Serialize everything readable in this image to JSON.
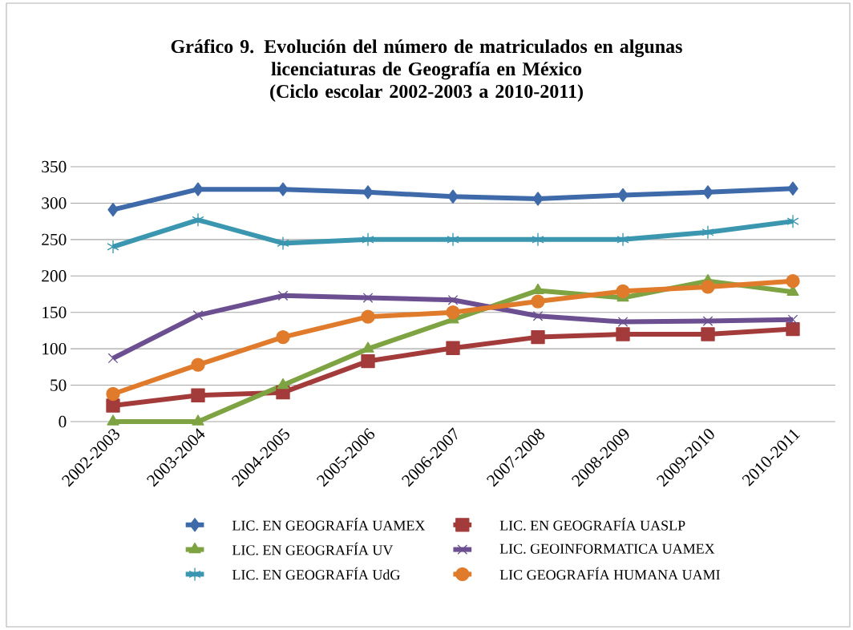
{
  "chart_data": {
    "type": "line",
    "title": "Gráfico 9. Evolución del número de matriculados en algunas\nlicenciaturas de Geografía en México\n(Ciclo escolar 2002-2003 a 2010-2011)",
    "categories": [
      "2002-2003",
      "2003-2004",
      "2004-2005",
      "2005-2006",
      "2006-2007",
      "2007-2008",
      "2008-2009",
      "2009-2010",
      "2010-2011"
    ],
    "series": [
      {
        "name": "LIC. EN GEOGRAFÍA  UAMEX",
        "color": "#3f6aaa",
        "marker": "diamond",
        "values": [
          291,
          319,
          319,
          315,
          309,
          306,
          311,
          315,
          320
        ]
      },
      {
        "name": "LIC. EN GEOGRAFÍA  UASLP",
        "color": "#a33b3a",
        "marker": "square",
        "values": [
          22,
          36,
          40,
          83,
          101,
          116,
          120,
          120,
          127
        ]
      },
      {
        "name": "LIC. EN GEOGRAFÍA  UV",
        "color": "#7ea342",
        "marker": "triangle",
        "values": [
          0,
          0,
          50,
          100,
          140,
          180,
          170,
          193,
          178
        ]
      },
      {
        "name": "LIC. GEOINFORMATICA  UAMEX",
        "color": "#6b4f90",
        "marker": "cross",
        "values": [
          87,
          146,
          173,
          170,
          167,
          145,
          137,
          138,
          140
        ]
      },
      {
        "name": "LIC. EN GEOGRAFÍA UdG",
        "color": "#3b96b0",
        "marker": "cross",
        "values": [
          240,
          277,
          245,
          250,
          250,
          250,
          250,
          260,
          275
        ]
      },
      {
        "name": "LIC GEOGRAFÍA HUMANA UAMI",
        "color": "#e07b2c",
        "marker": "circle",
        "values": [
          38,
          78,
          116,
          144,
          150,
          165,
          179,
          185,
          193
        ]
      }
    ],
    "ylim": [
      0,
      350
    ],
    "yticks": [
      0,
      50,
      100,
      150,
      200,
      250,
      300,
      350
    ],
    "grid": "y",
    "legend": "bottom",
    "line_style": "solid"
  }
}
